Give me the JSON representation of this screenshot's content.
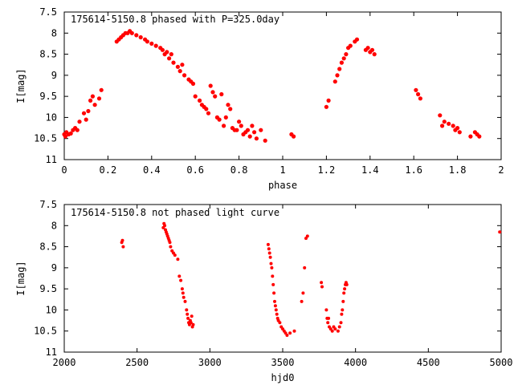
{
  "chart_data": [
    {
      "type": "scatter",
      "title": "175614-5150.8 phased with P=325.0day",
      "xlabel": "phase",
      "ylabel": "I[mag]",
      "xlim": [
        0,
        2
      ],
      "ylim": [
        7.5,
        11
      ],
      "y_inverted": true,
      "xticks": [
        "0",
        "0.2",
        "0.4",
        "0.6",
        "0.8",
        "1",
        "1.2",
        "1.4",
        "1.6",
        "1.8",
        "2"
      ],
      "yticks": [
        "7.5",
        "8",
        "8.5",
        "9",
        "9.5",
        "10",
        "10.5",
        "11"
      ],
      "marker_color": "#ff0000",
      "series": [
        {
          "x": [
            0.0,
            0.005,
            0.01,
            0.02,
            0.03,
            0.04,
            0.05,
            0.06,
            0.07,
            0.09,
            0.1,
            0.11,
            0.12,
            0.13,
            0.14,
            0.16,
            0.17,
            0.24,
            0.25,
            0.26,
            0.27,
            0.28,
            0.29,
            0.3,
            0.31,
            0.33,
            0.35,
            0.37,
            0.38,
            0.4,
            0.42,
            0.44,
            0.45,
            0.46,
            0.47,
            0.48,
            0.49,
            0.5,
            0.52,
            0.53,
            0.54,
            0.55,
            0.57,
            0.58,
            0.59,
            0.6,
            0.62,
            0.63,
            0.64,
            0.65,
            0.66,
            0.67,
            0.68,
            0.69,
            0.7,
            0.71,
            0.72,
            0.73,
            0.74,
            0.75,
            0.76,
            0.77,
            0.78,
            0.79,
            0.8,
            0.81,
            0.82,
            0.83,
            0.84,
            0.85,
            0.86,
            0.87,
            0.88,
            0.9,
            0.92,
            1.04,
            1.05,
            1.2,
            1.21,
            1.24,
            1.25,
            1.26,
            1.27,
            1.28,
            1.29,
            1.3,
            1.31,
            1.33,
            1.34,
            1.38,
            1.39,
            1.4,
            1.41,
            1.42,
            1.61,
            1.62,
            1.63,
            1.72,
            1.73,
            1.74,
            1.76,
            1.78,
            1.79,
            1.8,
            1.81,
            1.86,
            1.88,
            1.89,
            1.9
          ],
          "y": [
            10.4,
            10.45,
            10.35,
            10.4,
            10.38,
            10.3,
            10.25,
            10.3,
            10.1,
            9.9,
            10.05,
            9.85,
            9.6,
            9.5,
            9.7,
            9.55,
            9.35,
            8.2,
            8.15,
            8.1,
            8.05,
            8.0,
            8.0,
            7.95,
            8.0,
            8.05,
            8.1,
            8.15,
            8.2,
            8.25,
            8.3,
            8.35,
            8.4,
            8.5,
            8.45,
            8.6,
            8.5,
            8.7,
            8.8,
            8.9,
            8.75,
            9.0,
            9.1,
            9.15,
            9.2,
            9.5,
            9.6,
            9.7,
            9.75,
            9.8,
            9.9,
            9.25,
            9.4,
            9.5,
            10.0,
            10.05,
            9.45,
            10.2,
            10.0,
            9.7,
            9.8,
            10.25,
            10.3,
            10.3,
            10.1,
            10.2,
            10.4,
            10.35,
            10.3,
            10.45,
            10.2,
            10.35,
            10.5,
            10.3,
            10.55,
            10.4,
            10.45,
            9.75,
            9.6,
            9.15,
            9.0,
            8.85,
            8.7,
            8.6,
            8.5,
            8.35,
            8.3,
            8.2,
            8.15,
            8.4,
            8.35,
            8.45,
            8.4,
            8.5,
            9.35,
            9.45,
            9.55,
            9.95,
            10.2,
            10.1,
            10.15,
            10.2,
            10.3,
            10.25,
            10.35,
            10.45,
            10.35,
            10.4,
            10.45
          ]
        }
      ]
    },
    {
      "type": "scatter",
      "title": "175614-5150.8 not phased light curve",
      "xlabel": "hjd0",
      "ylabel": "I[mag]",
      "xlim": [
        2000,
        5000
      ],
      "ylim": [
        7.5,
        11
      ],
      "y_inverted": true,
      "xticks": [
        "2000",
        "2500",
        "3000",
        "3500",
        "4000",
        "4500",
        "5000"
      ],
      "yticks": [
        "7.5",
        "8",
        "8.5",
        "9",
        "9.5",
        "10",
        "10.5",
        "11"
      ],
      "marker_color": "#ff0000",
      "series": [
        {
          "x": [
            2395,
            2400,
            2405,
            2680,
            2685,
            2690,
            2695,
            2700,
            2705,
            2710,
            2715,
            2720,
            2725,
            2730,
            2740,
            2750,
            2760,
            2780,
            2790,
            2800,
            2810,
            2815,
            2820,
            2830,
            2840,
            2845,
            2850,
            2855,
            2860,
            2865,
            2870,
            2875,
            2880,
            2885,
            3400,
            3405,
            3410,
            3415,
            3420,
            3425,
            3430,
            3435,
            3440,
            3445,
            3450,
            3455,
            3460,
            3465,
            3470,
            3480,
            3490,
            3500,
            3510,
            3520,
            3530,
            3550,
            3580,
            3630,
            3640,
            3650,
            3660,
            3670,
            3765,
            3770,
            3800,
            3805,
            3810,
            3815,
            3820,
            3830,
            3840,
            3850,
            3860,
            3880,
            3890,
            3900,
            3905,
            3910,
            3915,
            3920,
            3925,
            3930,
            3935,
            3940,
            4990
          ],
          "y": [
            8.4,
            8.35,
            8.5,
            8.05,
            7.95,
            8.0,
            8.1,
            8.15,
            8.2,
            8.25,
            8.3,
            8.35,
            8.4,
            8.5,
            8.6,
            8.65,
            8.7,
            8.8,
            9.2,
            9.3,
            9.5,
            9.6,
            9.7,
            9.8,
            10.0,
            10.1,
            10.2,
            10.3,
            10.35,
            10.25,
            10.3,
            10.15,
            10.4,
            10.35,
            8.45,
            8.55,
            8.65,
            8.75,
            8.9,
            9.0,
            9.2,
            9.4,
            9.6,
            9.8,
            9.9,
            10.0,
            10.1,
            10.2,
            10.25,
            10.3,
            10.4,
            10.45,
            10.5,
            10.55,
            10.6,
            10.55,
            10.5,
            9.8,
            9.6,
            9.0,
            8.3,
            8.25,
            9.35,
            9.45,
            10.0,
            10.2,
            10.3,
            10.2,
            10.4,
            10.45,
            10.5,
            10.4,
            10.45,
            10.5,
            10.4,
            10.3,
            10.1,
            10.0,
            9.8,
            9.6,
            9.5,
            9.4,
            9.35,
            9.4,
            8.15
          ]
        }
      ]
    }
  ]
}
